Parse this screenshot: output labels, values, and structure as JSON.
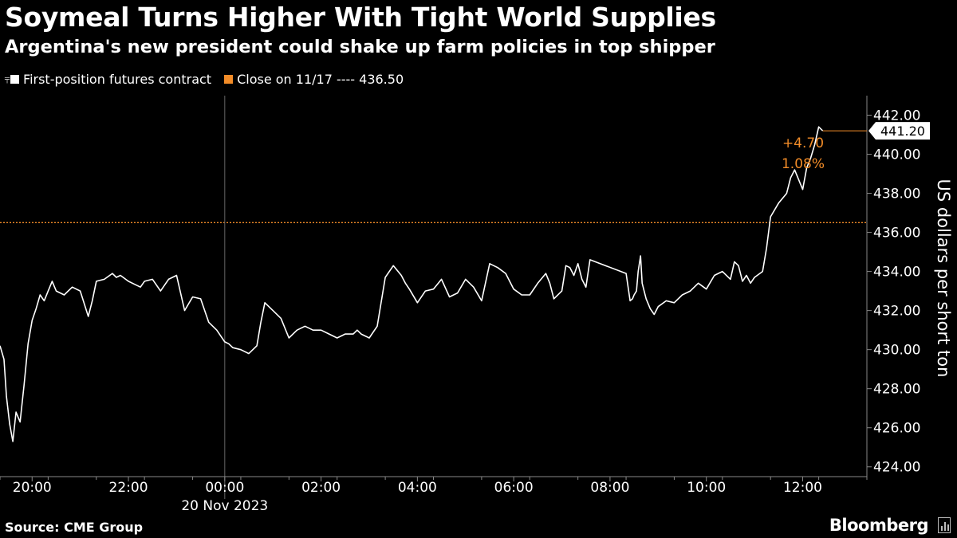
{
  "header": {
    "title": "Soymeal Turns Higher With Tight World Supplies",
    "subtitle": "Argentina's new president could shake up farm policies in top shipper"
  },
  "legend": {
    "series_label": "First-position futures contract",
    "reference_label": "Close on 11/17 ---- 436.50"
  },
  "footer": {
    "source": "Source: CME Group",
    "brand": "Bloomberg"
  },
  "colors": {
    "background": "#000000",
    "series": "#ffffff",
    "reference": "#f28c28",
    "axis": "#888888"
  },
  "chart_data": {
    "type": "line",
    "title": "Soymeal Turns Higher With Tight World Supplies",
    "subtitle": "Argentina's new president could shake up farm policies in top shipper",
    "ylabel": "US dollars per short ton",
    "x_date_label": "20 Nov 2023",
    "x_tick_labels": [
      "20:00",
      "22:00",
      "00:00",
      "02:00",
      "04:00",
      "06:00",
      "08:00",
      "10:00",
      "12:00"
    ],
    "xlim": [
      "19:20",
      "13:20"
    ],
    "ylim": [
      423.5,
      443.0
    ],
    "y_ticks": [
      424,
      426,
      428,
      430,
      432,
      434,
      436,
      438,
      440,
      442
    ],
    "y_tick_labels": [
      "424.00",
      "426.00",
      "428.00",
      "430.00",
      "432.00",
      "434.00",
      "436.00",
      "438.00",
      "440.00",
      "442.00"
    ],
    "y_axis_side": "right",
    "grid": false,
    "reference_line": {
      "name": "Close on 11/17",
      "value": 436.5,
      "style": "dotted",
      "color": "#f28c28"
    },
    "last_value": 441.2,
    "last_value_label": "441.20",
    "change_label": "+4.70",
    "change_pct_label": "1.08%",
    "series": [
      {
        "name": "First-position futures contract",
        "x": [
          "19:20",
          "19:25",
          "19:28",
          "19:32",
          "19:36",
          "19:40",
          "19:45",
          "19:50",
          "19:55",
          "20:00",
          "20:05",
          "20:10",
          "20:15",
          "20:20",
          "20:25",
          "20:30",
          "20:40",
          "20:50",
          "21:00",
          "21:10",
          "21:15",
          "21:20",
          "21:30",
          "21:40",
          "21:45",
          "21:50",
          "22:00",
          "22:10",
          "22:15",
          "22:20",
          "22:30",
          "22:40",
          "22:50",
          "23:00",
          "23:10",
          "23:20",
          "23:30",
          "23:40",
          "23:50",
          "00:00",
          "00:05",
          "00:10",
          "00:20",
          "00:30",
          "00:40",
          "00:45",
          "00:50",
          "01:00",
          "01:10",
          "01:20",
          "01:30",
          "01:40",
          "01:50",
          "02:00",
          "02:10",
          "02:20",
          "02:30",
          "02:40",
          "02:45",
          "02:50",
          "03:00",
          "03:10",
          "03:20",
          "03:30",
          "03:40",
          "03:45",
          "03:50",
          "04:00",
          "04:10",
          "04:20",
          "04:30",
          "04:40",
          "04:50",
          "05:00",
          "05:10",
          "05:20",
          "05:30",
          "05:40",
          "05:50",
          "06:00",
          "06:10",
          "06:20",
          "06:30",
          "06:40",
          "06:45",
          "06:50",
          "07:00",
          "07:05",
          "07:10",
          "07:15",
          "07:20",
          "07:25",
          "07:30",
          "07:35",
          "08:20",
          "08:25",
          "08:28",
          "08:30",
          "08:33",
          "08:35",
          "08:38",
          "08:40",
          "08:45",
          "08:50",
          "08:55",
          "09:00",
          "09:10",
          "09:20",
          "09:30",
          "09:40",
          "09:50",
          "10:00",
          "10:10",
          "10:20",
          "10:30",
          "10:35",
          "10:40",
          "10:45",
          "10:50",
          "10:55",
          "11:00",
          "11:10",
          "11:15",
          "11:20",
          "11:30",
          "11:40",
          "11:45",
          "11:50",
          "12:00",
          "12:05",
          "12:10",
          "12:15",
          "12:20",
          "12:25"
        ],
        "values": [
          430.2,
          429.5,
          427.6,
          426.2,
          425.3,
          426.8,
          426.3,
          428.2,
          430.3,
          431.5,
          432.1,
          432.8,
          432.5,
          433.0,
          433.5,
          433.0,
          432.8,
          433.2,
          433.0,
          431.7,
          432.5,
          433.5,
          433.6,
          433.9,
          433.7,
          433.8,
          433.5,
          433.3,
          433.2,
          433.5,
          433.6,
          433.0,
          433.6,
          433.8,
          432.0,
          432.7,
          432.6,
          431.4,
          431.0,
          430.4,
          430.3,
          430.1,
          430.0,
          429.8,
          430.2,
          431.4,
          432.4,
          432.0,
          431.6,
          430.6,
          431.0,
          431.2,
          431.0,
          431.0,
          430.8,
          430.6,
          430.8,
          430.8,
          431.0,
          430.8,
          430.6,
          431.2,
          433.7,
          434.3,
          433.8,
          433.4,
          433.1,
          432.4,
          433.0,
          433.1,
          433.6,
          432.7,
          432.9,
          433.6,
          433.2,
          432.5,
          434.4,
          434.2,
          433.9,
          433.1,
          432.8,
          432.8,
          433.4,
          433.9,
          433.4,
          432.6,
          433.0,
          434.3,
          434.2,
          433.8,
          434.4,
          433.6,
          433.2,
          434.6,
          433.9,
          432.5,
          432.6,
          432.8,
          433.0,
          434.0,
          434.8,
          433.4,
          432.6,
          432.1,
          431.8,
          432.2,
          432.5,
          432.4,
          432.8,
          433.0,
          433.4,
          433.1,
          433.8,
          434.0,
          433.6,
          434.5,
          434.3,
          433.5,
          433.8,
          433.4,
          433.7,
          434.0,
          435.2,
          436.8,
          437.5,
          438.0,
          438.8,
          439.2,
          438.2,
          439.3,
          439.8,
          440.5,
          441.4,
          441.2
        ]
      }
    ]
  }
}
